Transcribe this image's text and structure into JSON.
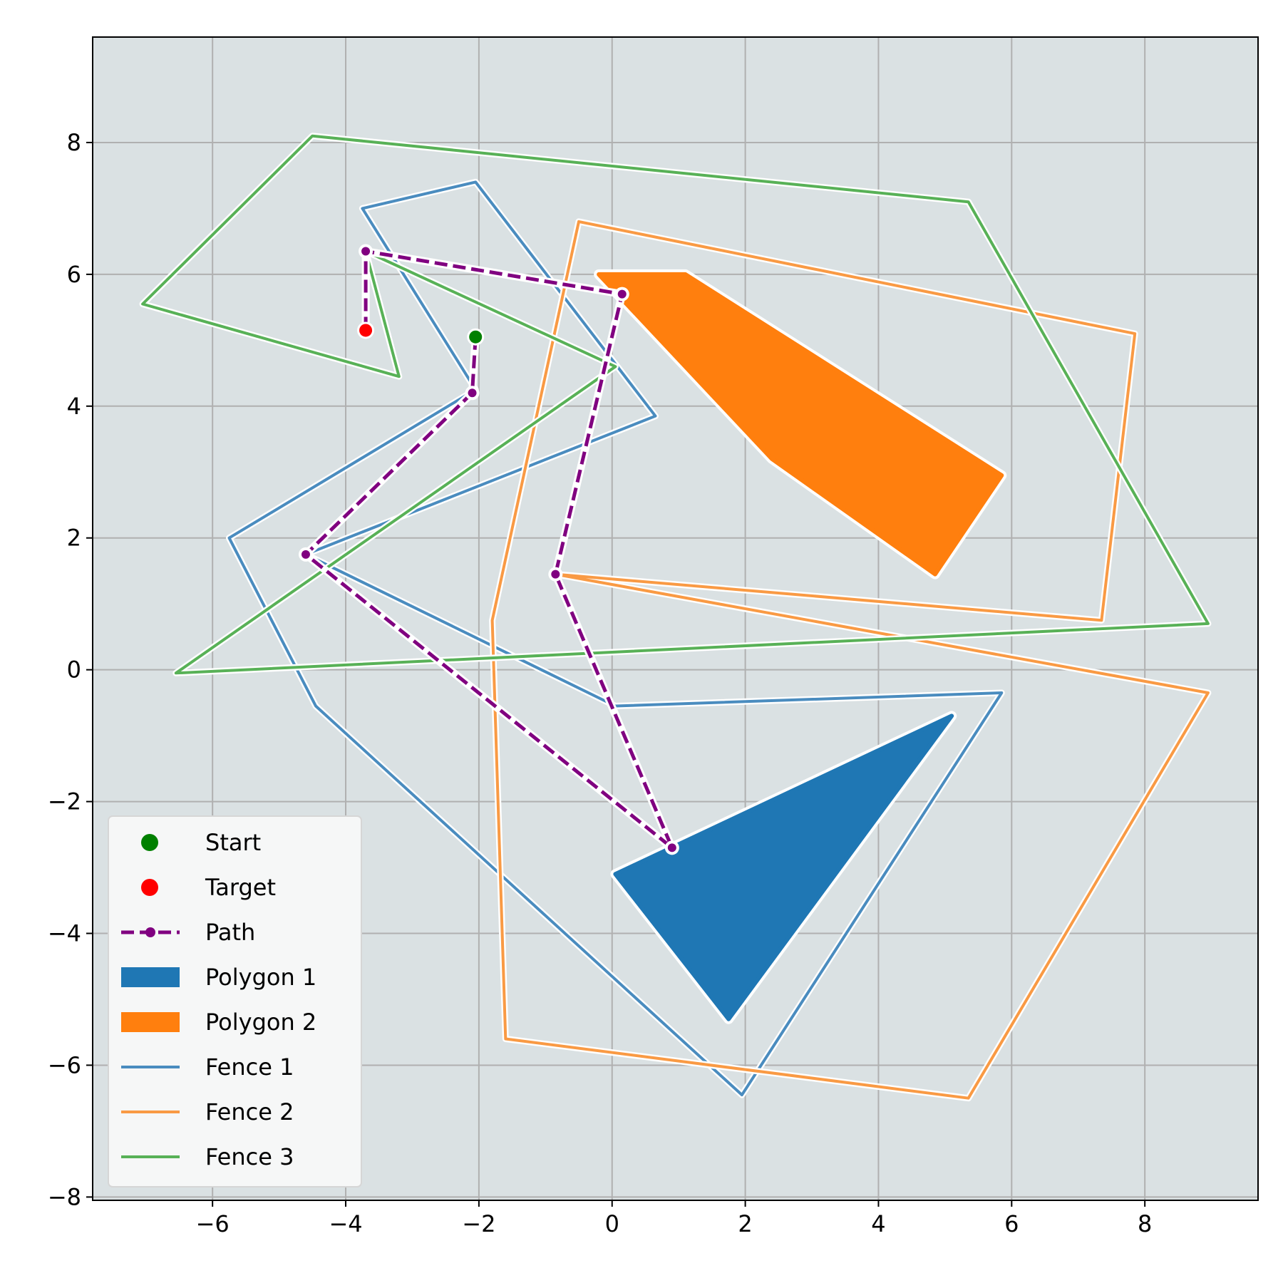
{
  "chart_data": {
    "type": "scatter",
    "title": "",
    "xlabel": "",
    "ylabel": "",
    "xlim": [
      -7.8,
      9.7
    ],
    "ylim": [
      -8.05,
      9.6
    ],
    "xticks": [
      -6,
      -4,
      -2,
      0,
      2,
      4,
      6,
      8
    ],
    "yticks": [
      -8,
      -6,
      -4,
      -2,
      0,
      2,
      4,
      6,
      8
    ],
    "xtick_labels": [
      "−6",
      "−4",
      "−2",
      "0",
      "2",
      "4",
      "6",
      "8"
    ],
    "ytick_labels": [
      "−8",
      "−6",
      "−4",
      "−2",
      "0",
      "2",
      "4",
      "6",
      "8"
    ],
    "grid": true,
    "background": "#dae1e3",
    "legend_position": "lower-left",
    "start": {
      "name": "Start",
      "x": -2.05,
      "y": 5.05,
      "color": "#008000"
    },
    "target": {
      "name": "Target",
      "x": -3.7,
      "y": 5.15,
      "color": "#ff0000"
    },
    "path": {
      "name": "Path",
      "color": "#800080",
      "points": [
        [
          -2.05,
          5.05
        ],
        [
          -2.1,
          4.2
        ],
        [
          -4.6,
          1.75
        ],
        [
          0.9,
          -2.7
        ],
        [
          -0.85,
          1.45
        ],
        [
          0.15,
          5.7
        ],
        [
          -3.7,
          6.35
        ],
        [
          -3.7,
          5.15
        ]
      ]
    },
    "polygons": [
      {
        "name": "Polygon 1",
        "color": "#1f77b4",
        "points": [
          [
            0.05,
            -3.1
          ],
          [
            5.1,
            -0.7
          ],
          [
            1.75,
            -5.3
          ]
        ]
      },
      {
        "name": "Polygon 2",
        "color": "#ff7f0e",
        "points": [
          [
            -0.2,
            6.0
          ],
          [
            1.1,
            6.0
          ],
          [
            5.85,
            2.95
          ],
          [
            4.85,
            1.45
          ],
          [
            2.4,
            3.2
          ]
        ]
      }
    ],
    "fences": [
      {
        "name": "Fence 1",
        "color": "#4a8cbf",
        "points": [
          [
            -3.75,
            7.0
          ],
          [
            -2.05,
            7.4
          ],
          [
            0.65,
            3.85
          ],
          [
            -4.6,
            1.75
          ],
          [
            0.05,
            -0.55
          ],
          [
            5.85,
            -0.35
          ],
          [
            1.95,
            -6.45
          ],
          [
            -4.45,
            -0.55
          ],
          [
            -5.75,
            2.0
          ],
          [
            -2.05,
            4.25
          ]
        ]
      },
      {
        "name": "Fence 2",
        "color": "#f99a44",
        "points": [
          [
            -0.5,
            6.8
          ],
          [
            7.85,
            5.1
          ],
          [
            7.35,
            0.75
          ],
          [
            -0.85,
            1.45
          ],
          [
            8.95,
            -0.35
          ],
          [
            5.35,
            -6.5
          ],
          [
            -1.6,
            -5.6
          ],
          [
            -1.8,
            0.75
          ]
        ]
      },
      {
        "name": "Fence 3",
        "color": "#58b157",
        "points": [
          [
            -4.5,
            8.1
          ],
          [
            5.35,
            7.1
          ],
          [
            8.95,
            0.7
          ],
          [
            -6.55,
            -0.05
          ],
          [
            0.05,
            4.6
          ],
          [
            -3.7,
            6.35
          ],
          [
            -3.2,
            4.45
          ],
          [
            -7.05,
            5.55
          ]
        ]
      }
    ],
    "legend": [
      {
        "label": "Start",
        "kind": "dot",
        "color": "#008000"
      },
      {
        "label": "Target",
        "kind": "dot",
        "color": "#ff0000"
      },
      {
        "label": "Path",
        "kind": "path",
        "color": "#800080"
      },
      {
        "label": "Polygon 1",
        "kind": "patch",
        "color": "#1f77b4"
      },
      {
        "label": "Polygon 2",
        "kind": "patch",
        "color": "#ff7f0e"
      },
      {
        "label": "Fence 1",
        "kind": "line",
        "color": "#4a8cbf"
      },
      {
        "label": "Fence 2",
        "kind": "line",
        "color": "#f99a44"
      },
      {
        "label": "Fence 3",
        "kind": "line",
        "color": "#58b157"
      }
    ]
  }
}
